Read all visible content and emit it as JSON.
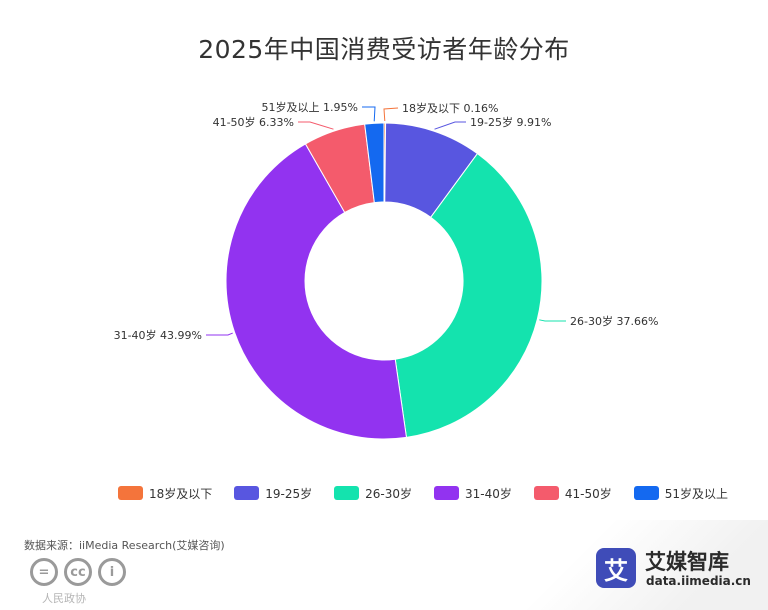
{
  "chart_data": {
    "type": "pie",
    "title": "2025年中国消费受访者年龄分布",
    "categories": [
      "18岁及以下",
      "19-25岁",
      "26-30岁",
      "31-40岁",
      "41-50岁",
      "51岁及以上"
    ],
    "values": [
      0.16,
      9.91,
      37.66,
      43.99,
      6.33,
      1.95
    ],
    "value_labels": [
      "18岁及以下 0.16%",
      "19-25岁 9.91%",
      "26-30岁 37.66%",
      "31-40岁 43.99%",
      "41-50岁 6.33%",
      "51岁及以上 1.95%"
    ],
    "colors": [
      "#f4743b",
      "#5856e0",
      "#14e3ae",
      "#9233f0",
      "#f45b6c",
      "#1469f0"
    ],
    "legend_position": "bottom",
    "inner_radius_ratio": 0.5
  },
  "source": "数据来源：iiMedia Research(艾媒咨询)",
  "license_icons": [
    "equals-icon",
    "cc-icon",
    "person-icon"
  ],
  "license_labels": [
    "=",
    "cc",
    "i"
  ],
  "watermark": "人民政协",
  "brand": {
    "logo_char": "艾",
    "name": "艾媒智库",
    "url": "data.iimedia.cn"
  }
}
